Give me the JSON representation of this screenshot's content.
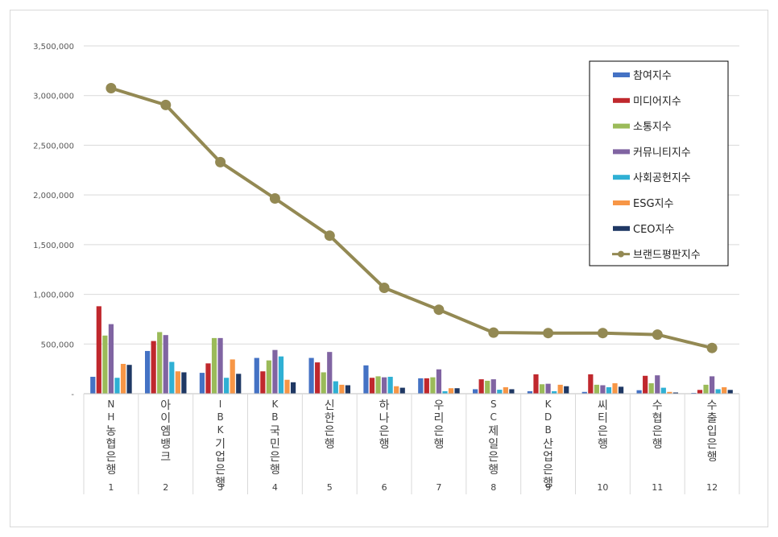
{
  "chart_data": {
    "type": "bar",
    "title": "",
    "xlabel": "",
    "ylabel": "",
    "ylim": [
      0,
      3500000
    ],
    "yticks": [
      "-",
      "500,000",
      "1,000,000",
      "1,500,000",
      "2,000,000",
      "2,500,000",
      "3,000,000",
      "3,500,000"
    ],
    "categories": [
      "NH농협은행",
      "아이엠뱅크",
      "IBK기업은행",
      "KB국민은행",
      "신한은행",
      "하나은행",
      "우리은행",
      "SC제일은행",
      "KDB산업은행",
      "씨티은행",
      "수협은행",
      "수출입은행"
    ],
    "indices": [
      "1",
      "2",
      "3",
      "4",
      "5",
      "6",
      "7",
      "8",
      "9",
      "10",
      "11",
      "12"
    ],
    "series": [
      {
        "name": "참여지수",
        "color": "#4472c4",
        "values": [
          170000,
          430000,
          210000,
          360000,
          360000,
          285000,
          155000,
          45000,
          25000,
          18000,
          35000,
          8000
        ]
      },
      {
        "name": "미디어지수",
        "color": "#c0282d",
        "values": [
          880000,
          530000,
          305000,
          225000,
          315000,
          160000,
          155000,
          145000,
          195000,
          195000,
          180000,
          38000
        ]
      },
      {
        "name": "소통지수",
        "color": "#9bbb59",
        "values": [
          585000,
          620000,
          560000,
          335000,
          215000,
          175000,
          165000,
          130000,
          95000,
          90000,
          105000,
          90000
        ]
      },
      {
        "name": "커뮤니티지수",
        "color": "#8064a2",
        "values": [
          700000,
          590000,
          560000,
          440000,
          420000,
          165000,
          245000,
          145000,
          100000,
          85000,
          185000,
          175000
        ]
      },
      {
        "name": "사회공헌지수",
        "color": "#2fb0d4",
        "values": [
          160000,
          320000,
          160000,
          375000,
          125000,
          170000,
          25000,
          40000,
          25000,
          65000,
          60000,
          45000
        ]
      },
      {
        "name": "ESG지수",
        "color": "#f79646",
        "values": [
          300000,
          225000,
          345000,
          140000,
          90000,
          75000,
          55000,
          65000,
          90000,
          105000,
          18000,
          65000
        ]
      },
      {
        "name": "CEO지수",
        "color": "#1f3864",
        "values": [
          290000,
          215000,
          200000,
          115000,
          85000,
          60000,
          55000,
          45000,
          75000,
          70000,
          12000,
          38000
        ]
      }
    ],
    "line": {
      "name": "브랜드평판지수",
      "color": "#938953",
      "values": [
        3075000,
        2905000,
        2330000,
        1965000,
        1590000,
        1065000,
        845000,
        615000,
        610000,
        610000,
        595000,
        460000
      ]
    },
    "legend_position": "top-right",
    "grid": true
  }
}
